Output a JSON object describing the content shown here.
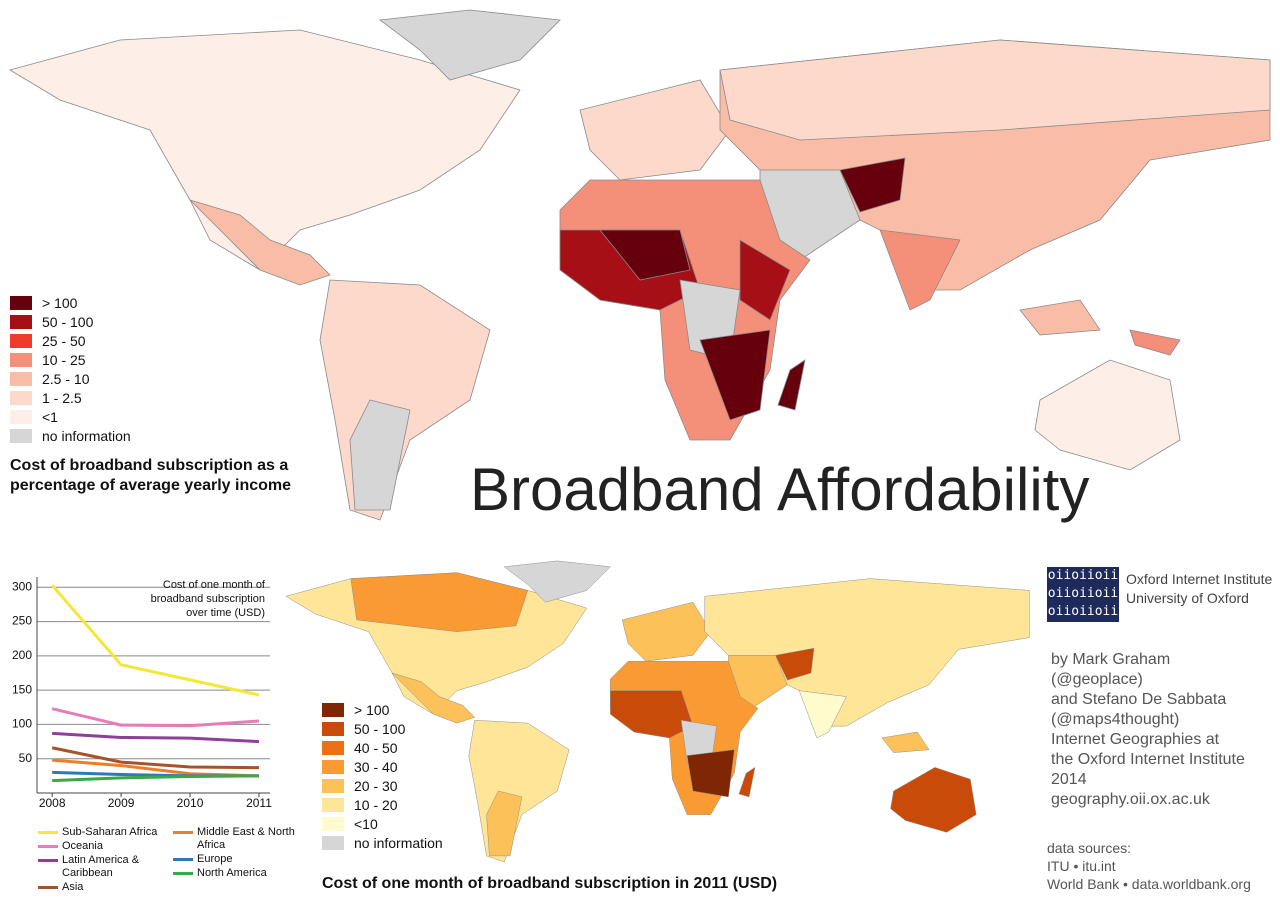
{
  "title": "Broadband Affordability",
  "income_legend": {
    "title": "Cost of broadband subscription as a percentage of average yearly income",
    "items": [
      {
        "label": "> 100",
        "color": "#67000d"
      },
      {
        "label": "50 - 100",
        "color": "#a50f15"
      },
      {
        "label": "25 - 50",
        "color": "#ef3b2c"
      },
      {
        "label": "10 - 25",
        "color": "#f4907a"
      },
      {
        "label": "2.5 - 10",
        "color": "#f9bda7"
      },
      {
        "label": "1 - 2.5",
        "color": "#fcd9cb"
      },
      {
        "label": "<1",
        "color": "#fdeee8"
      },
      {
        "label": "no information",
        "color": "#d6d6d6"
      }
    ]
  },
  "usd_legend": {
    "title": "Cost of one month of broadband subscription in 2011 (USD)",
    "items": [
      {
        "label": "> 100",
        "color": "#7f2704"
      },
      {
        "label": "50 - 100",
        "color": "#c84b0a"
      },
      {
        "label": "40 - 50",
        "color": "#ec7014"
      },
      {
        "label": "30 - 40",
        "color": "#f99b32"
      },
      {
        "label": "20 - 30",
        "color": "#fdc15a"
      },
      {
        "label": "10 - 20",
        "color": "#fee597"
      },
      {
        "label": "<10",
        "color": "#fffbcd"
      },
      {
        "label": "no information",
        "color": "#d6d6d6"
      }
    ]
  },
  "chart_data": {
    "type": "line",
    "title": "Cost of one month of broadband subscription over time (USD)",
    "x": [
      2008,
      2009,
      2010,
      2011
    ],
    "xlim": [
      2007.78,
      2011.16
    ],
    "xticks": [
      2008,
      2009,
      2010,
      2011
    ],
    "ylim": [
      0,
      315
    ],
    "yticks": [
      50,
      100,
      150,
      200,
      250,
      300
    ],
    "grid": true,
    "series": [
      {
        "name": "Sub-Saharan Africa",
        "color": "#f5e63a",
        "values": [
          303,
          187,
          165,
          143
        ]
      },
      {
        "name": "Oceania",
        "color": "#e87cb8",
        "values": [
          123,
          99,
          98,
          105
        ]
      },
      {
        "name": "Latin America & Caribbean",
        "color": "#8e3f9a",
        "values": [
          87,
          81,
          80,
          75
        ]
      },
      {
        "name": "Asia",
        "color": "#a4532a",
        "values": [
          66,
          45,
          38,
          37
        ]
      },
      {
        "name": "Middle East & North Africa",
        "color": "#ee7d2a",
        "values": [
          48,
          40,
          28,
          25
        ]
      },
      {
        "name": "Europe",
        "color": "#2f79b8",
        "values": [
          30,
          27,
          25,
          25
        ]
      },
      {
        "name": "North America",
        "color": "#3aa845",
        "values": [
          18,
          22,
          24,
          25
        ]
      }
    ]
  },
  "institute": {
    "logo_rows": [
      "oiioiioii",
      "oiioiioii",
      "oiioiioii"
    ],
    "name": "Oxford Internet Institute",
    "university": "University of Oxford"
  },
  "credits": [
    "by Mark Graham",
    "(@geoplace)",
    "and Stefano De Sabbata",
    "(@maps4thought)",
    "Internet Geographies at",
    "the Oxford Internet Institute",
    "2014",
    "geography.oii.ox.ac.uk"
  ],
  "data_sources": [
    "data sources:",
    "ITU • itu.int",
    "World Bank • data.worldbank.org"
  ]
}
